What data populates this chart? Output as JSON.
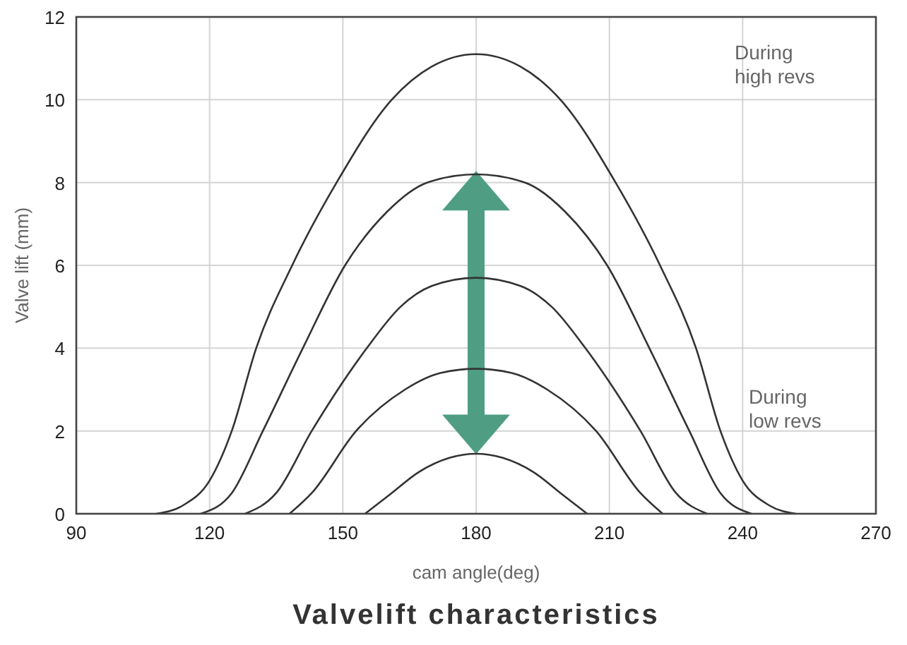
{
  "chart_data": {
    "type": "line",
    "title": "Valvelift characteristics",
    "xlabel": "cam angle(deg)",
    "ylabel": "Valve lift (mm)",
    "annotations": [
      "During\nhigh revs",
      "During\nlow revs"
    ],
    "xlim": [
      90,
      270
    ],
    "xticks": [
      90,
      120,
      150,
      180,
      210,
      240,
      270
    ],
    "ylim": [
      0,
      12
    ],
    "yticks": [
      0,
      2,
      4,
      6,
      8,
      10,
      12
    ],
    "grid": true,
    "marker": "none",
    "line_style": "solid",
    "series": [
      {
        "color": "#333333",
        "x": [
          108,
          114,
          120,
          125,
          130.5,
          138.6,
          148.6,
          161,
          170,
          180,
          190,
          199,
          211.4,
          221.4,
          229.5,
          235,
          240,
          246,
          252
        ],
        "values": [
          0,
          0.2,
          0.8,
          2,
          4,
          6,
          8,
          10,
          10.8,
          11.1,
          10.8,
          10,
          8,
          6,
          4,
          2,
          0.8,
          0.2,
          0
        ]
      },
      {
        "color": "#333333",
        "x": [
          118,
          125,
          132,
          141,
          150.5,
          160,
          169,
          180,
          191,
          200,
          209.5,
          219,
          228,
          235,
          242
        ],
        "values": [
          0,
          0.5,
          2,
          4,
          6,
          7.3,
          8,
          8.2,
          8,
          7.3,
          6,
          4,
          2,
          0.5,
          0
        ]
      },
      {
        "color": "#333333",
        "x": [
          128,
          135,
          143,
          155.4,
          163,
          170,
          180,
          190,
          197,
          204.6,
          217,
          225,
          232
        ],
        "values": [
          0,
          0.5,
          2,
          4,
          5,
          5.5,
          5.7,
          5.5,
          5,
          4,
          2,
          0.5,
          0
        ]
      },
      {
        "color": "#333333",
        "x": [
          138,
          143,
          153,
          164,
          172,
          180,
          188,
          196,
          207,
          217,
          222
        ],
        "values": [
          0,
          0.5,
          2,
          3,
          3.4,
          3.5,
          3.4,
          3,
          2,
          0.5,
          0
        ]
      },
      {
        "color": "#333333",
        "x": [
          155,
          161,
          167,
          174,
          180,
          186,
          193,
          199,
          205
        ],
        "values": [
          0,
          0.5,
          1,
          1.35,
          1.45,
          1.35,
          1,
          0.5,
          0
        ]
      }
    ]
  }
}
